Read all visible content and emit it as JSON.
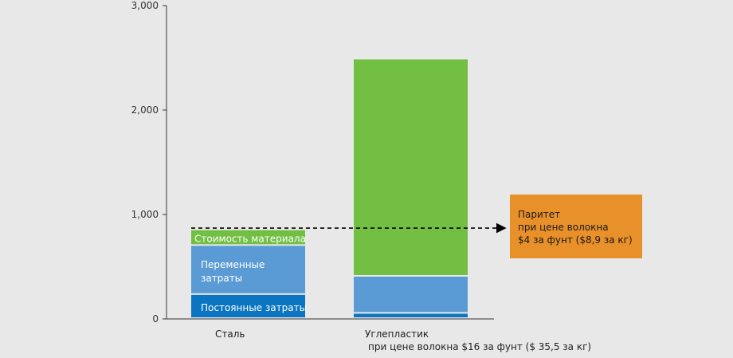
{
  "chart_data": {
    "type": "bar",
    "stacked": true,
    "ylim": [
      0,
      3000
    ],
    "yticks": [
      "0",
      "1,000",
      "2,000",
      "3,000"
    ],
    "ytick_values": [
      0,
      1000,
      2000,
      3000
    ],
    "grid": false,
    "categories": [
      "Сталь",
      "Углепластик"
    ],
    "category_sublabels": [
      "",
      "при цене волокна $16 за фунт ($ 35,5 за кг)"
    ],
    "series": [
      {
        "name": "Постоянные затраты",
        "values": [
          230,
          50
        ],
        "color": "#0b75c1"
      },
      {
        "name": "Переменные затраты",
        "values": [
          470,
          355
        ],
        "color": "#5b9bd5"
      },
      {
        "name": "Стоимость материала",
        "values": [
          150,
          2080
        ],
        "color": "#72bf44"
      }
    ],
    "segment_labels": {
      "fixed": "Постоянные затраты",
      "variable_line1": "Переменные",
      "variable_line2": "затраты",
      "material": "Стоимость материала"
    },
    "parity_line_value": 870,
    "annotation": {
      "line1": "Паритет",
      "line2": "при цене волокна",
      "line3": "$4 за фунт ($8,9 за кг)",
      "color": "#e8902a"
    }
  }
}
